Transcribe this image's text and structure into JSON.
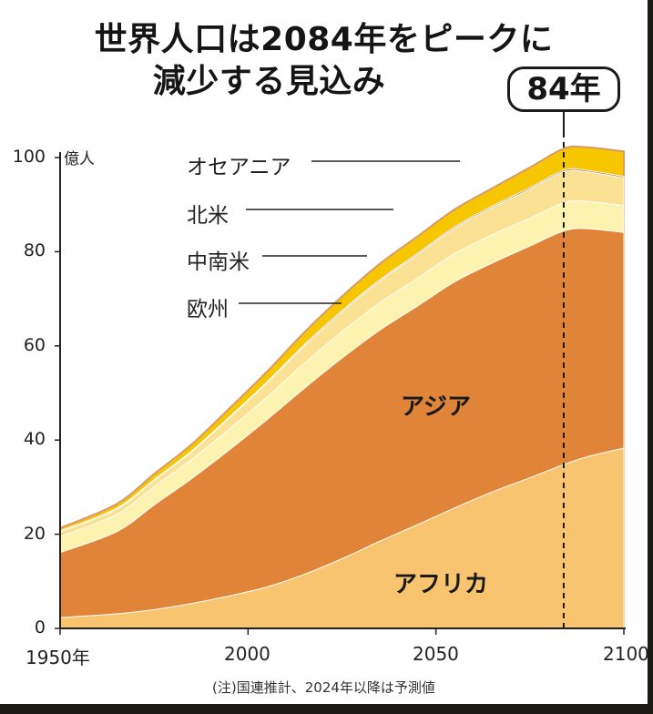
{
  "title": {
    "line1": "世界人口は2084年をピークに",
    "line2": "減少する見込み"
  },
  "peak_callout": "84年",
  "note": "(注)国連推計、2024年以降は予測値",
  "colors": {
    "africa": "#f9c46f",
    "asia": "#df8438",
    "europe": "#fdf3b1",
    "latin_america": "#fbe193",
    "north_america": "#96421f",
    "oceania": "#f6c600",
    "oceania_edge": "#d99a6b"
  },
  "chart_data": {
    "type": "area",
    "stacked": true,
    "unit": "億人",
    "ylim": [
      0,
      100
    ],
    "yticks": [
      "0",
      "20",
      "40",
      "60",
      "80",
      "100"
    ],
    "xlim": [
      1950,
      2100
    ],
    "xticks": [
      "1950年",
      "2000",
      "2050",
      "2100"
    ],
    "peak_year": 2084,
    "x": [
      1950,
      1965,
      1975,
      1985,
      1995,
      2005,
      2015,
      2025,
      2035,
      2045,
      2055,
      2065,
      2075,
      2084,
      2090,
      2100
    ],
    "series": [
      {
        "name": "アフリカ",
        "values": [
          2.3,
          3.1,
          4.0,
          5.3,
          6.9,
          8.8,
          11.5,
          14.8,
          18.5,
          22.0,
          25.6,
          29.0,
          32.0,
          34.8,
          36.4,
          38.3
        ]
      },
      {
        "name": "アジア",
        "values": [
          13.8,
          17.4,
          22.2,
          26.5,
          31.0,
          35.5,
          39.5,
          42.6,
          44.8,
          46.4,
          48.0,
          48.6,
          49.2,
          49.6,
          48.5,
          45.8
        ]
      },
      {
        "name": "欧州",
        "values": [
          3.4,
          3.7,
          3.9,
          4.1,
          4.4,
          4.8,
          5.3,
          5.6,
          5.8,
          5.9,
          6.0,
          6.0,
          5.9,
          6.0,
          5.8,
          5.7
        ]
      },
      {
        "name": "中南米",
        "values": [
          1.0,
          1.1,
          1.3,
          1.6,
          2.4,
          3.0,
          3.7,
          4.2,
          4.6,
          5.0,
          5.4,
          5.8,
          6.2,
          6.6,
          6.3,
          5.9
        ]
      },
      {
        "name": "北米",
        "values": [
          0.2,
          0.2,
          0.2,
          0.2,
          0.2,
          0.2,
          0.3,
          0.3,
          0.3,
          0.3,
          0.3,
          0.3,
          0.3,
          0.3,
          0.3,
          0.3
        ]
      },
      {
        "name": "オセアニア",
        "values": [
          0.6,
          0.9,
          1.2,
          1.4,
          1.8,
          2.2,
          2.6,
          3.0,
          3.4,
          3.6,
          3.7,
          3.8,
          4.3,
          4.6,
          4.9,
          5.3
        ]
      }
    ]
  },
  "labels": {
    "oceania": "オセアニア",
    "north_america": "北米",
    "latin_america": "中南米",
    "europe": "欧州",
    "asia": "アジア",
    "africa": "アフリカ"
  }
}
